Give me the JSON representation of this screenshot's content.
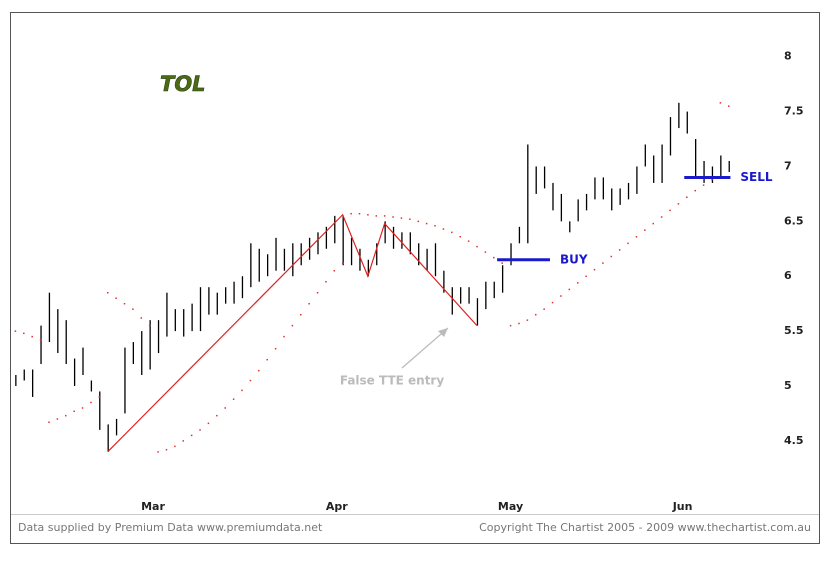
{
  "chart_data": {
    "type": "ohlc",
    "title": "TOL",
    "high": [
      5.1,
      5.15,
      5.15,
      5.55,
      5.85,
      5.7,
      5.6,
      5.25,
      5.35,
      5.05,
      4.95,
      4.65,
      4.7,
      5.35,
      5.4,
      5.5,
      5.6,
      5.6,
      5.85,
      5.7,
      5.7,
      5.75,
      5.9,
      5.9,
      5.85,
      5.9,
      5.95,
      6.0,
      6.3,
      6.25,
      6.2,
      6.35,
      6.25,
      6.3,
      6.3,
      6.35,
      6.4,
      6.45,
      6.55,
      6.55,
      6.35,
      6.25,
      6.15,
      6.3,
      6.5,
      6.45,
      6.4,
      6.4,
      6.3,
      6.25,
      6.3,
      6.05,
      5.9,
      5.9,
      5.9,
      5.8,
      5.95,
      5.95,
      6.1,
      6.3,
      6.45,
      7.2,
      7.0,
      7.0,
      6.85,
      6.75,
      6.5,
      6.7,
      6.75,
      6.9,
      6.9,
      6.8,
      6.8,
      6.85,
      7.0,
      7.2,
      7.1,
      7.2,
      7.45,
      7.58,
      7.5,
      7.25,
      7.05,
      7.0,
      7.1,
      7.05
    ],
    "low": [
      5.0,
      5.05,
      4.9,
      5.2,
      5.4,
      5.3,
      5.2,
      5.0,
      5.1,
      4.95,
      4.6,
      4.4,
      4.55,
      4.75,
      5.2,
      5.1,
      5.15,
      5.3,
      5.45,
      5.5,
      5.45,
      5.5,
      5.5,
      5.65,
      5.65,
      5.75,
      5.75,
      5.8,
      5.9,
      5.95,
      6.0,
      6.05,
      6.05,
      6.0,
      6.1,
      6.15,
      6.2,
      6.25,
      6.3,
      6.1,
      6.1,
      6.05,
      6.0,
      6.1,
      6.3,
      6.25,
      6.25,
      6.2,
      6.1,
      6.05,
      6.0,
      5.85,
      5.65,
      5.75,
      5.75,
      5.55,
      5.7,
      5.8,
      5.85,
      6.1,
      6.3,
      6.3,
      6.75,
      6.8,
      6.6,
      6.5,
      6.4,
      6.5,
      6.6,
      6.7,
      6.7,
      6.6,
      6.65,
      6.7,
      6.75,
      7.0,
      6.85,
      6.85,
      7.1,
      7.35,
      7.3,
      6.9,
      6.85,
      6.85,
      6.9,
      6.95
    ],
    "sar": [
      5.5,
      5.48,
      5.45,
      5.42,
      4.67,
      4.7,
      4.73,
      4.77,
      4.8,
      4.85,
      4.9,
      5.85,
      5.8,
      5.75,
      5.7,
      5.62,
      5.55,
      4.4,
      4.42,
      4.45,
      4.5,
      4.55,
      4.6,
      4.66,
      4.73,
      4.8,
      4.88,
      4.96,
      5.05,
      5.14,
      5.24,
      5.34,
      5.45,
      5.55,
      5.65,
      5.75,
      5.85,
      5.95,
      6.05,
      6.12,
      6.57,
      6.57,
      6.56,
      6.55,
      6.55,
      6.54,
      6.53,
      6.52,
      6.5,
      6.48,
      6.46,
      6.43,
      6.4,
      6.36,
      6.32,
      6.27,
      6.22,
      6.17,
      6.12,
      5.55,
      5.57,
      5.6,
      5.65,
      5.7,
      5.76,
      5.82,
      5.88,
      5.94,
      6.0,
      6.06,
      6.12,
      6.18,
      6.24,
      6.3,
      6.36,
      6.42,
      6.48,
      6.54,
      6.6,
      6.66,
      6.72,
      6.78,
      6.83,
      6.88,
      7.58,
      7.55
    ],
    "zigzag": {
      "x": [
        11,
        39,
        42,
        44,
        55
      ],
      "values": [
        4.4,
        6.56,
        6.0,
        6.48,
        5.55
      ]
    },
    "levels": [
      {
        "label": "BUY",
        "value": 6.15,
        "x": [
          57.4,
          63.7
        ]
      },
      {
        "label": "SELL",
        "value": 6.9,
        "x": [
          79.7,
          85.2
        ]
      }
    ],
    "annotation": "False TTE entry",
    "xlim": [
      -0.4,
      92.3
    ],
    "xticks": [
      {
        "value": 16.4,
        "label": "Mar"
      },
      {
        "value": 38.3,
        "label": "Apr"
      },
      {
        "value": 59,
        "label": "May"
      },
      {
        "value": 79.5,
        "label": "Jun"
      }
    ],
    "ylim": [
      3.87,
      8.38
    ],
    "yticks": [
      4.5,
      5,
      5.5,
      6,
      6.5,
      7,
      7.5,
      8
    ],
    "colors": {
      "bars": "#000000",
      "sar": "#e03030",
      "zigzag": "#e02020",
      "levels": "#1a1acc"
    }
  },
  "footer": {
    "left": "Data supplied by Premium Data www.premiumdata.net",
    "right": "Copyright The Chartist 2005 - 2009  www.thechartist.com.au"
  }
}
